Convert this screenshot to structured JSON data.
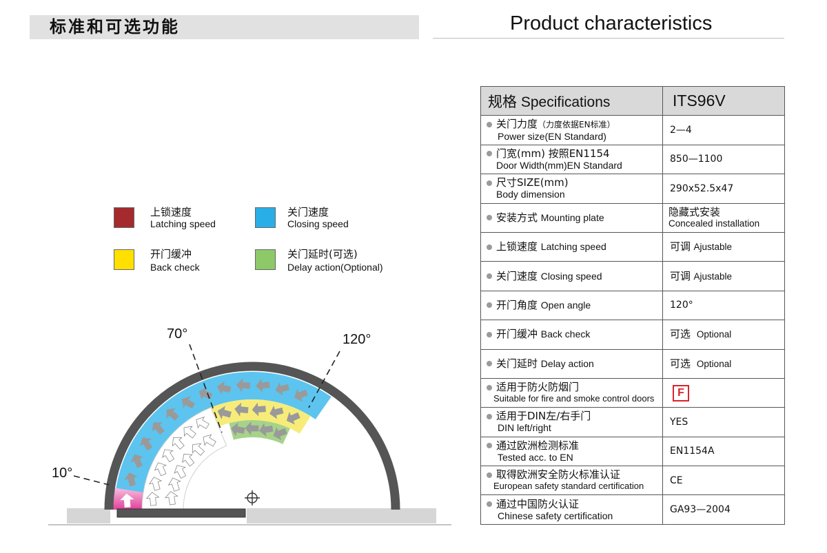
{
  "header": {
    "title_cn": "标准和可选功能",
    "title_en": "Product characteristics"
  },
  "legend": [
    {
      "cn": "上锁速度",
      "en": "Latching speed",
      "color": "#a52a2e"
    },
    {
      "cn": "关门速度",
      "en": "Closing speed",
      "color": "#2aaee8"
    },
    {
      "cn": "开门缓冲",
      "en": "Back check",
      "color": "#ffe000"
    },
    {
      "cn": "关门延时(可选)",
      "en": "Delay action(Optional)",
      "color": "#8dc968"
    }
  ],
  "diagram": {
    "angles": {
      "a10": "10°",
      "a70": "70°",
      "a120": "120°"
    },
    "colors": {
      "frame": "#555555",
      "latching_pink": "#e0409a",
      "closing_blue": "#5cc4ef",
      "backcheck_yellow": "#f7ec79",
      "delay_green": "#a6d389",
      "arrow_grey": "#9a9a9a",
      "floor": "#d6d6d6"
    }
  },
  "spec_table": {
    "header": {
      "left": "规格 Specifications",
      "right": "ITS96V"
    },
    "rows": [
      {
        "cn": "关门力度",
        "cn_note": "（力度依据EN标准）",
        "en": "Power size(EN Standard)",
        "value": "2—4"
      },
      {
        "cn": "门宽(mm) 按照EN1154",
        "en": "Door Width(mm)EN Standard",
        "value": "850—1100"
      },
      {
        "cn": "尺寸SIZE(mm)",
        "en": "Body dimension",
        "value": "290x52.5x47"
      },
      {
        "cn": "安装方式",
        "cn_inline_en": "Mounting plate",
        "value_cn": "隐藏式安装",
        "value_en": "Concealed installation"
      },
      {
        "cn": "上锁速度",
        "cn_inline_en": "Latching speed",
        "value_cn": "可调",
        "value_en": "Ajustable"
      },
      {
        "cn": "关门速度",
        "cn_inline_en": "Closing speed",
        "value_cn": "可调",
        "value_en": "Ajustable"
      },
      {
        "cn": "开门角度",
        "cn_inline_en": "Open angle",
        "value": "120°"
      },
      {
        "cn": "开门缓冲",
        "cn_inline_en": "Back check",
        "value_cn": "可选",
        "value_en": "Optional"
      },
      {
        "cn": "关门延时",
        "cn_inline_en": "Delay action",
        "value_cn": "可选",
        "value_en": "Optional"
      },
      {
        "cn": "适用于防火防烟门",
        "en": "Suitable for fire and smoke control doors",
        "icon_letter": "F"
      },
      {
        "cn": "适用于DIN左/右手门",
        "en": "DIN left/right",
        "value": "YES"
      },
      {
        "cn": "通过欧洲检测标准",
        "en": "Tested acc. to EN",
        "value": "EN1154A"
      },
      {
        "cn": "取得欧洲安全防火标准认证",
        "en": "European safety standard certification",
        "value": "CE"
      },
      {
        "cn": "通过中国防火认证",
        "en": "Chinese safety certification",
        "value": "GA93—2004"
      }
    ]
  }
}
